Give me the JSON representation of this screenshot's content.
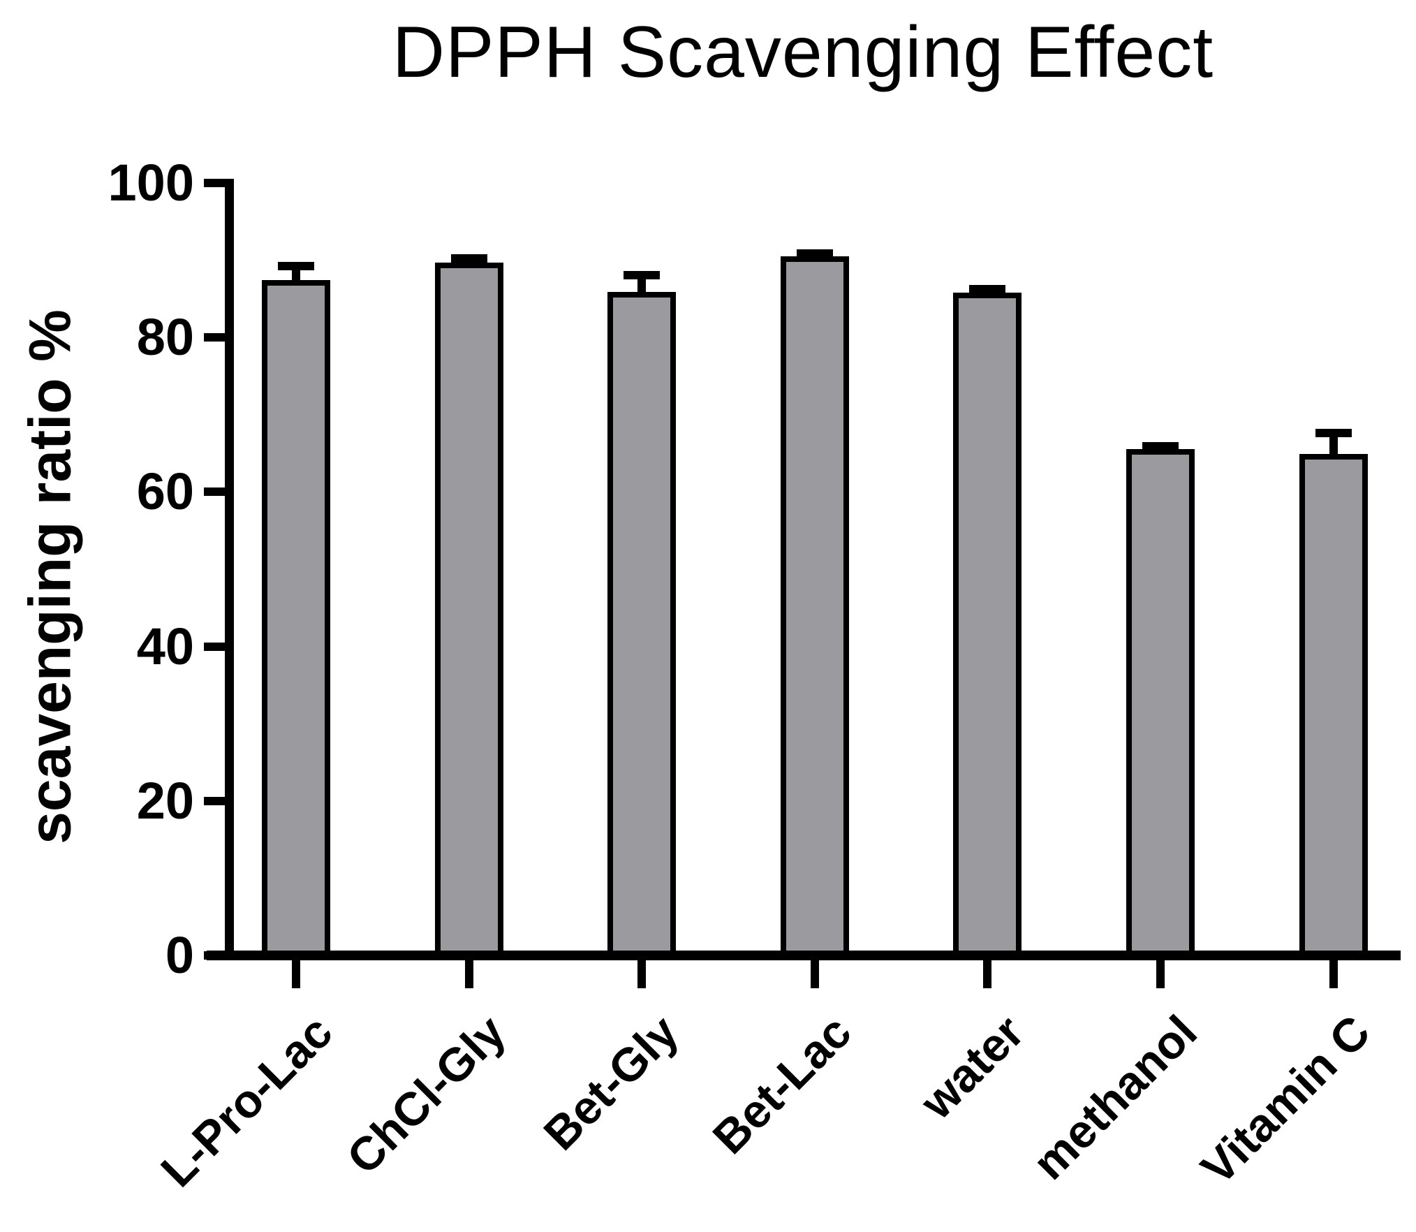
{
  "title": "DPPH Scavenging Effect",
  "chart_data": {
    "type": "bar",
    "title": "DPPH Scavenging Effect",
    "xlabel": "",
    "ylabel": "scavenging ratio %",
    "categories": [
      "L-Pro-Lac",
      "ChCl-Gly",
      "Bet-Gly",
      "Bet-Lac",
      "water",
      "methanol",
      "Vitamin C"
    ],
    "values": [
      87.4,
      89.7,
      85.9,
      90.5,
      85.8,
      65.6,
      64.9
    ],
    "errors": [
      2.4,
      1.1,
      2.7,
      0.9,
      1.0,
      0.9,
      3.3
    ],
    "error_bars": "upper-only-with-cap",
    "ylim": [
      0,
      100
    ],
    "yticks": [
      0,
      20,
      40,
      60,
      80,
      100
    ],
    "grid": false,
    "legend": false,
    "bar_fill_color": "#9b9b9f",
    "bar_border_color": "#000000",
    "axis_color": "#000000",
    "xtick_label_rotation_deg": -45
  }
}
